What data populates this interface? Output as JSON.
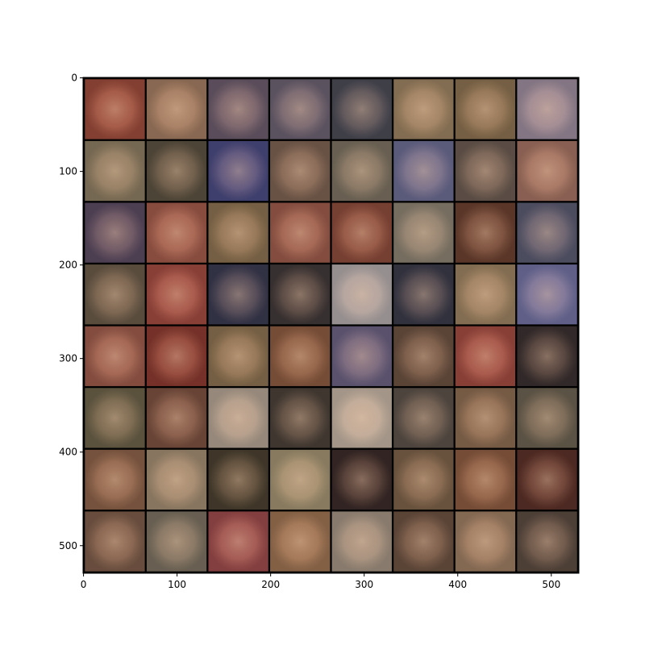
{
  "chart_data": {
    "type": "image",
    "xlim": [
      -0.5,
      529.5
    ],
    "ylim": [
      529.5,
      -0.5
    ],
    "xticks": [
      0,
      100,
      200,
      300,
      400,
      500
    ],
    "yticks": [
      0,
      100,
      200,
      300,
      400,
      500
    ],
    "image_grid": {
      "rows": 8,
      "cols": 8,
      "tile_size": 64,
      "padding": 2,
      "pad_color": "#000000",
      "tile_colors": [
        "#9a4a3a",
        "#a07a60",
        "#6a5a6a",
        "#6a6070",
        "#4a4a55",
        "#9a8060",
        "#8a7050",
        "#9a8a9a",
        "#8a7a60",
        "#5a5040",
        "#4a4a80",
        "#7a6050",
        "#7a7060",
        "#6a6a90",
        "#6a5a50",
        "#a07060",
        "#5a4a60",
        "#a05a4a",
        "#8a7050",
        "#9a5a4a",
        "#8a4a3a",
        "#8a8070",
        "#6a4030",
        "#5a5a70",
        "#6a5a48",
        "#a04a40",
        "#3a3a50",
        "#403838",
        "#b0a8a8",
        "#3a3a48",
        "#9a8060",
        "#7070a0",
        "#9a5a4a",
        "#8a3a30",
        "#8a7050",
        "#8a5a40",
        "#6a6080",
        "#6a5040",
        "#a04a40",
        "#3a3030",
        "#6a6048",
        "#7a5040",
        "#b0a090",
        "#4a4038",
        "#c0b0a0",
        "#5a5048",
        "#8a6a50",
        "#6a6050",
        "#8a6048",
        "#a08a70",
        "#4a4030",
        "#a09070",
        "#3a2a28",
        "#7a6048",
        "#8a5a40",
        "#5a3028",
        "#7a5a48",
        "#7a7060",
        "#9a4a4a",
        "#9a7050",
        "#a09080",
        "#6a5040",
        "#9a7a60",
        "#5a4a40"
      ]
    }
  }
}
